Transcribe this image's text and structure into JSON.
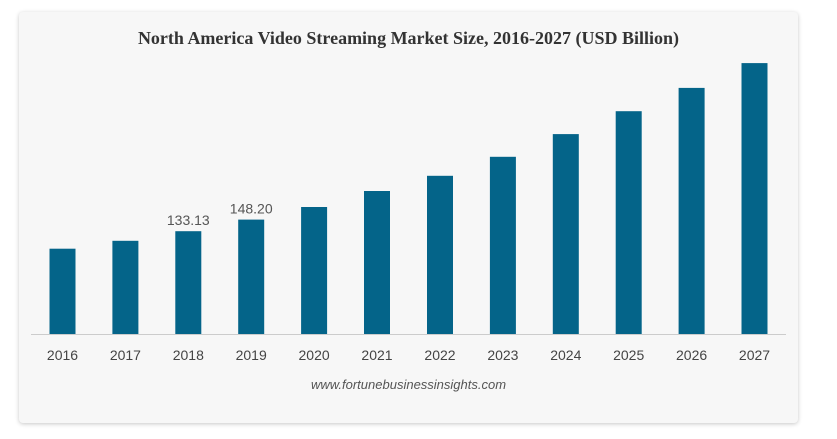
{
  "chart_data": {
    "type": "bar",
    "title": "North America Video Streaming Market Size, 2016-2027 (USD Billion)",
    "categories": [
      "2016",
      "2017",
      "2018",
      "2019",
      "2020",
      "2021",
      "2022",
      "2023",
      "2024",
      "2025",
      "2026",
      "2027"
    ],
    "values": [
      110.5,
      120.8,
      133.13,
      148.2,
      164.5,
      185.3,
      205.0,
      229.6,
      259.0,
      288.6,
      318.8,
      351.0
    ],
    "data_labels": {
      "2018": "133.13",
      "2019": "148.20"
    },
    "xlabel": "",
    "ylabel": "",
    "ylim": [
      0,
      355
    ],
    "grid": false,
    "bar_color": "#046489"
  },
  "source": "www.fortunebusinessinsights.com"
}
